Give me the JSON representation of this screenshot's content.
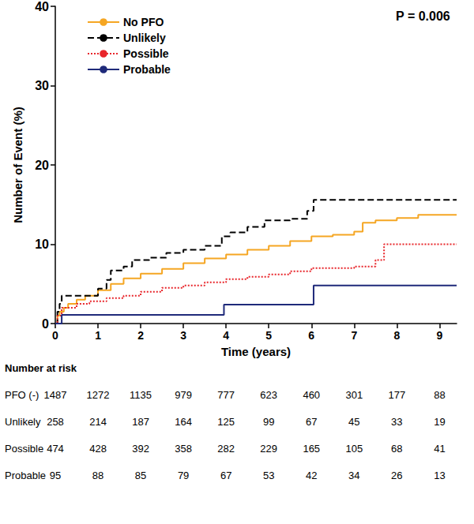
{
  "chart_data": {
    "type": "line",
    "x_label": "Time (years)",
    "y_label": "Number of Event (%)",
    "annotation": "P = 0.006",
    "xlim": [
      0,
      9.4
    ],
    "xticks": [
      0,
      1,
      2,
      3,
      4,
      5,
      6,
      7,
      8,
      9
    ],
    "ylim": [
      0,
      40
    ],
    "yticks": [
      0,
      10,
      20,
      30,
      40
    ],
    "grid": false,
    "legend": "upper left",
    "series": [
      {
        "name": "No PFO",
        "color": "#F5A623",
        "line_style": "solid",
        "x": [
          0,
          0.05,
          0.1,
          0.2,
          0.3,
          0.5,
          0.7,
          1,
          1.3,
          1.6,
          2,
          2.5,
          3,
          3.5,
          4,
          4.5,
          5,
          5.5,
          6,
          6.5,
          7,
          7.2,
          7.5,
          8,
          8.5,
          9.4
        ],
        "values": [
          0,
          1,
          1.5,
          2,
          2.5,
          3,
          3.5,
          4.2,
          5,
          5.7,
          6.3,
          6.9,
          7.6,
          8.2,
          8.7,
          9.3,
          9.8,
          10.4,
          11,
          11.2,
          11.6,
          12.7,
          13,
          13.3,
          13.7,
          13.7
        ]
      },
      {
        "name": "Unlikely",
        "color": "#000000",
        "line_style": "dashed",
        "x": [
          0,
          0.05,
          0.1,
          0.15,
          1,
          1.2,
          1.3,
          1.6,
          1.8,
          2.2,
          2.6,
          3,
          3.5,
          3.9,
          4.1,
          4.5,
          4.9,
          5.5,
          5.9,
          6.05,
          9.4
        ],
        "values": [
          0,
          1.5,
          2.5,
          3.5,
          4.4,
          5.5,
          6.7,
          7.2,
          8,
          8.3,
          8.9,
          9.3,
          9.8,
          11,
          11.5,
          12.2,
          13,
          13.2,
          14.2,
          15.6,
          15.6
        ]
      },
      {
        "name": "Possible",
        "color": "#E8262B",
        "line_style": "dotted",
        "x": [
          0,
          0.05,
          0.15,
          0.5,
          0.8,
          1.2,
          1.6,
          2,
          2.5,
          3,
          3.5,
          4,
          4.5,
          5,
          5.5,
          6,
          7,
          7.5,
          7.7,
          9.4
        ],
        "values": [
          0,
          1,
          2,
          2.5,
          2.8,
          3.2,
          3.5,
          4,
          4.5,
          4.8,
          5.2,
          5.6,
          5.9,
          6.2,
          6.6,
          7,
          7.2,
          8,
          10,
          10
        ]
      },
      {
        "name": "Probable",
        "color": "#1F2A7A",
        "line_style": "solid",
        "x": [
          0,
          0.15,
          3.95,
          6.05,
          9.4
        ],
        "values": [
          0,
          1.1,
          2.4,
          4.8,
          4.8
        ]
      }
    ],
    "number_at_risk": {
      "title": "Number at risk",
      "times": [
        0,
        1,
        2,
        3,
        4,
        5,
        6,
        7,
        8,
        9
      ],
      "rows": [
        {
          "label": "PFO (-)",
          "values": [
            1487,
            1272,
            1135,
            979,
            777,
            623,
            460,
            301,
            177,
            88
          ]
        },
        {
          "label": "Unlikely",
          "values": [
            258,
            214,
            187,
            164,
            125,
            99,
            67,
            45,
            33,
            19
          ]
        },
        {
          "label": "Possible",
          "values": [
            474,
            428,
            392,
            358,
            282,
            229,
            165,
            105,
            68,
            41
          ]
        },
        {
          "label": "Probable",
          "values": [
            95,
            88,
            85,
            79,
            67,
            53,
            42,
            34,
            26,
            13
          ]
        }
      ]
    }
  }
}
